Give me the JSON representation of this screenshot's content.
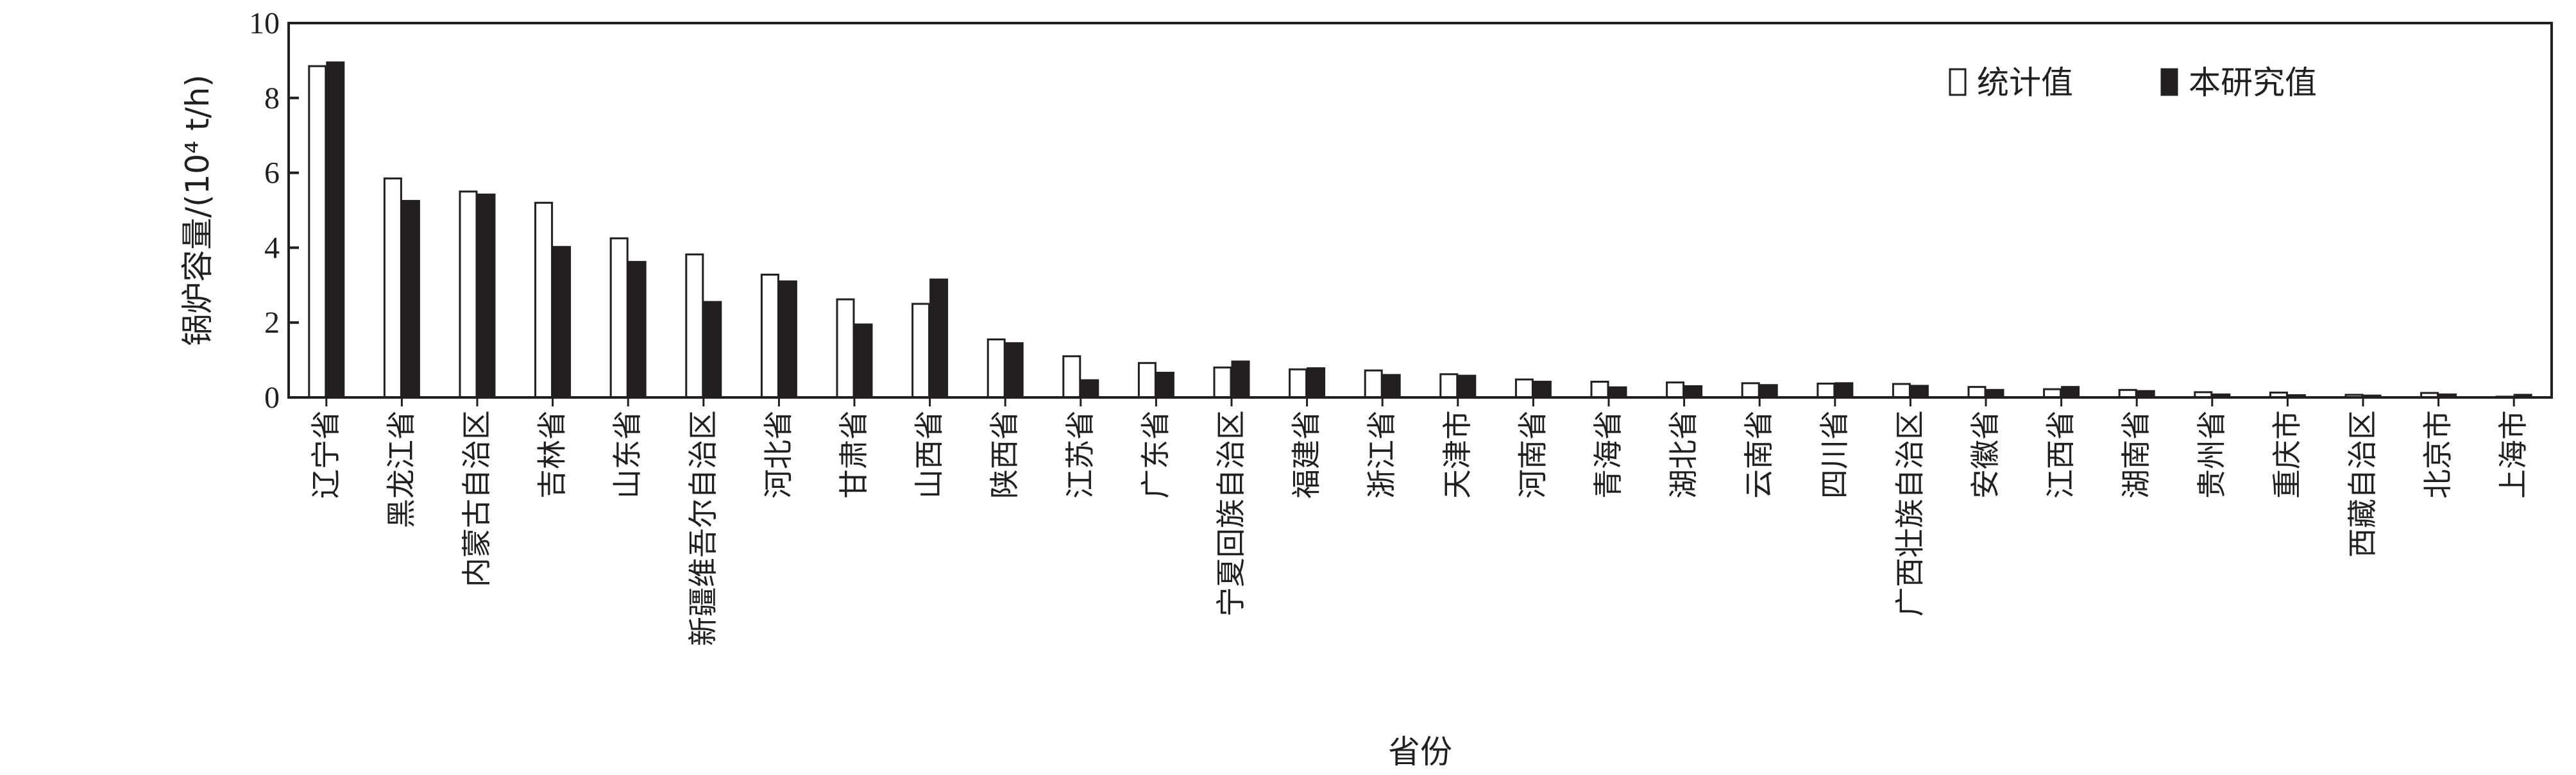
{
  "chart_data": {
    "type": "bar",
    "xlabel": "省份",
    "ylabel": "锅炉容量/(10⁴ t/h)",
    "ylim": [
      0,
      10
    ],
    "yticks": [
      0,
      2,
      4,
      6,
      8,
      10
    ],
    "grid": false,
    "legend_position": "top-right",
    "categories": [
      "辽宁省",
      "黑龙江省",
      "内蒙古自治区",
      "吉林省",
      "山东省",
      "新疆维吾尔自治区",
      "河北省",
      "甘肃省",
      "山西省",
      "陕西省",
      "江苏省",
      "广东省",
      "宁夏回族自治区",
      "福建省",
      "浙江省",
      "天津市",
      "河南省",
      "青海省",
      "湖北省",
      "云南省",
      "四川省",
      "广西壮族自治区",
      "安徽省",
      "江西省",
      "湖南省",
      "贵州省",
      "重庆市",
      "西藏自治区",
      "北京市",
      "上海市"
    ],
    "series": [
      {
        "name": "统计值",
        "color": "#ffffff",
        "stroke": "#231f20",
        "values": [
          8.85,
          5.85,
          5.5,
          5.2,
          4.25,
          3.82,
          3.28,
          2.62,
          2.5,
          1.55,
          1.1,
          0.92,
          0.8,
          0.75,
          0.72,
          0.62,
          0.48,
          0.42,
          0.4,
          0.38,
          0.37,
          0.36,
          0.28,
          0.22,
          0.2,
          0.14,
          0.13,
          0.07,
          0.12,
          0.02
        ]
      },
      {
        "name": "本研究值",
        "color": "#231f20",
        "stroke": "#231f20",
        "values": [
          8.95,
          5.25,
          5.42,
          4.02,
          3.62,
          2.55,
          3.1,
          1.95,
          3.15,
          1.45,
          0.46,
          0.66,
          0.96,
          0.78,
          0.6,
          0.58,
          0.42,
          0.27,
          0.3,
          0.33,
          0.38,
          0.31,
          0.2,
          0.28,
          0.17,
          0.08,
          0.06,
          0.05,
          0.08,
          0.07
        ]
      }
    ]
  }
}
